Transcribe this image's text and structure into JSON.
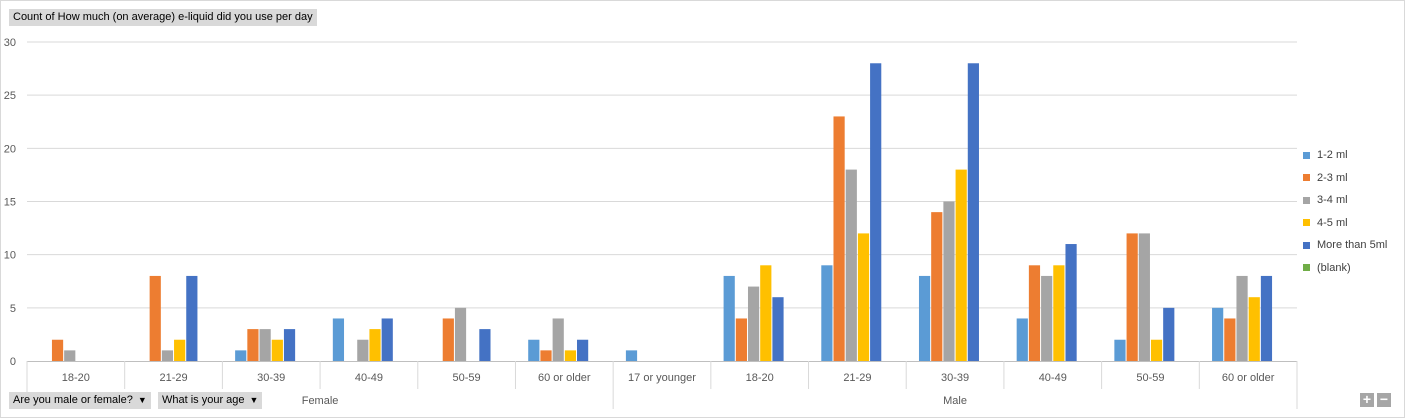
{
  "pivot": {
    "title_field": "Count of How much  (on average) e-liquid did you use per day",
    "gender_filter": "Are you male or female?",
    "age_filter": "What is your age",
    "dropdown_glyph": "▼",
    "zoom_in": "+",
    "zoom_out": "−"
  },
  "chart_data": {
    "type": "bar",
    "title": "",
    "ylim": [
      0,
      30
    ],
    "yticks": [
      0,
      5,
      10,
      15,
      20,
      25,
      30
    ],
    "grid": true,
    "legend_position": "right",
    "groups": [
      {
        "name": "Female",
        "categories": [
          "18-20",
          "21-29",
          "30-39",
          "40-49",
          "50-59",
          "60 or older"
        ]
      },
      {
        "name": "Male",
        "categories": [
          "17 or younger",
          "18-20",
          "21-29",
          "30-39",
          "40-49",
          "50-59",
          "60 or older"
        ]
      }
    ],
    "series": [
      {
        "name": "1-2 ml",
        "color": "#5B9BD5",
        "values": [
          null,
          null,
          1,
          4,
          null,
          2,
          1,
          8,
          9,
          8,
          4,
          2,
          5
        ]
      },
      {
        "name": "2-3 ml",
        "color": "#ED7D31",
        "values": [
          2,
          8,
          3,
          null,
          4,
          1,
          null,
          4,
          23,
          14,
          9,
          12,
          4
        ]
      },
      {
        "name": "3-4 ml",
        "color": "#A5A5A5",
        "values": [
          1,
          1,
          3,
          2,
          5,
          4,
          null,
          7,
          18,
          15,
          8,
          12,
          8
        ]
      },
      {
        "name": "4-5 ml",
        "color": "#FFC000",
        "values": [
          null,
          2,
          2,
          3,
          null,
          1,
          null,
          9,
          12,
          18,
          9,
          2,
          6
        ]
      },
      {
        "name": "More than 5ml",
        "color": "#4472C4",
        "values": [
          null,
          8,
          3,
          4,
          3,
          2,
          null,
          6,
          28,
          28,
          11,
          5,
          8
        ]
      },
      {
        "name": "(blank)",
        "color": "#70AD47",
        "values": [
          null,
          null,
          null,
          null,
          null,
          null,
          null,
          null,
          null,
          null,
          null,
          null,
          null
        ]
      }
    ]
  }
}
